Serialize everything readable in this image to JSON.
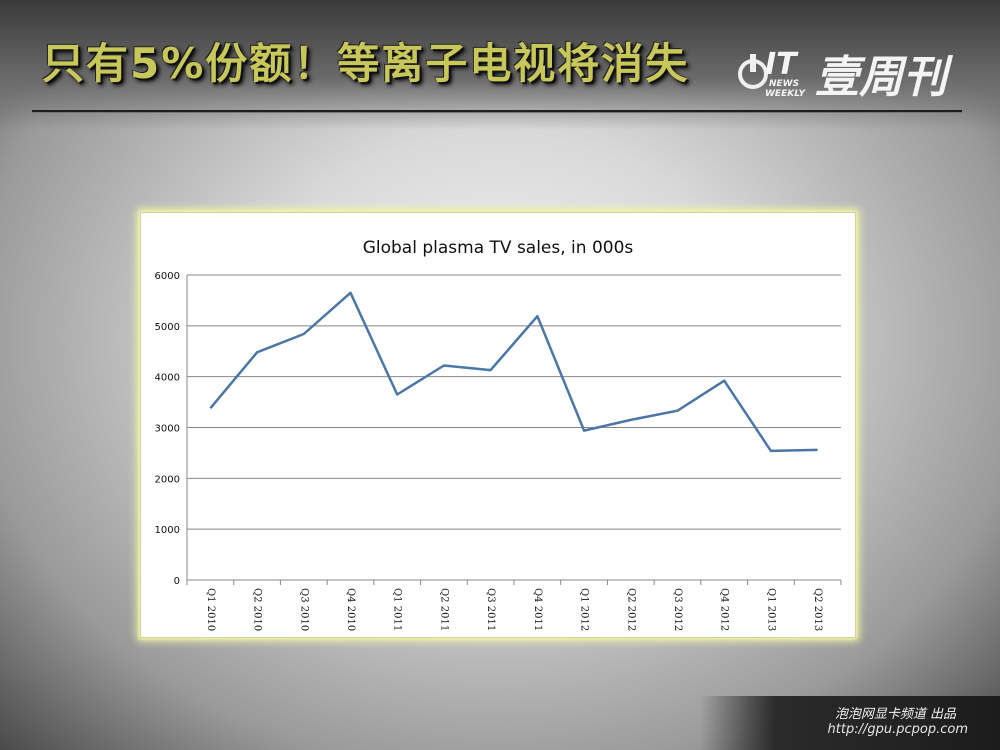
{
  "slide": {
    "headline": "只有5%份额！等离子电视将消失",
    "logo": {
      "badge": "IT",
      "sub_line1": "NEWS",
      "sub_line2": "WEEKLY",
      "name": "壹周刊"
    },
    "footer": {
      "line1": "泡泡网显卡频道 出品",
      "line2": "http://gpu.pcpop.com"
    }
  },
  "chart_data": {
    "type": "line",
    "title": "Global plasma TV sales, in 000s",
    "xlabel": "",
    "ylabel": "",
    "categories": [
      "Q1 2010",
      "Q2 2010",
      "Q3 2010",
      "Q4 2010",
      "Q1 2011",
      "Q2 2011",
      "Q3 2011",
      "Q4 2011",
      "Q1 2012",
      "Q2 2012",
      "Q3 2012",
      "Q4 2012",
      "Q1 2013",
      "Q2 2013"
    ],
    "series": [
      {
        "values": [
          3380,
          4480,
          4840,
          5650,
          3650,
          4220,
          4130,
          5190,
          2940,
          3150,
          3330,
          3920,
          2540,
          2560
        ]
      }
    ],
    "ylim": [
      0,
      6000
    ],
    "yticks": [
      "0",
      "1000",
      "2000",
      "3000",
      "4000",
      "5000",
      "6000"
    ],
    "grid": true,
    "legend": "none",
    "colors": {
      "line": "#4a76a8",
      "grid": "#888888",
      "axis": "#888888"
    }
  }
}
